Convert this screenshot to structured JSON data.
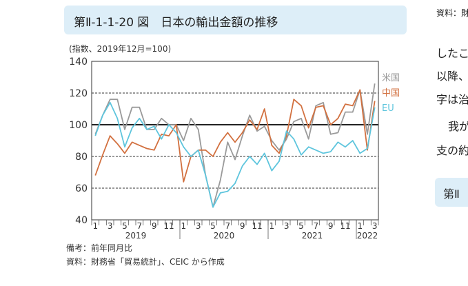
{
  "figure": {
    "title": "第Ⅱ-1-1-20 図　日本の輸出金額の推移",
    "unit": "(指数、2019年12月=100)",
    "note_1": "備考：前年同月比",
    "note_2": "資料：財務省「貿易統計」、CEIC から作成"
  },
  "side_page": {
    "top_text": "資料：財",
    "line_1": "したこ",
    "line_2": "以降、",
    "line_3": "字は治",
    "line_4": "我が",
    "line_5": "支の約",
    "box_label": "第Ⅱ"
  },
  "chart_data": {
    "type": "line",
    "x": [
      "2019-01",
      "2019-02",
      "2019-03",
      "2019-04",
      "2019-05",
      "2019-06",
      "2019-07",
      "2019-08",
      "2019-09",
      "2019-10",
      "2019-11",
      "2019-12",
      "2020-01",
      "2020-02",
      "2020-03",
      "2020-04",
      "2020-05",
      "2020-06",
      "2020-07",
      "2020-08",
      "2020-09",
      "2020-10",
      "2020-11",
      "2020-12",
      "2021-01",
      "2021-02",
      "2021-03",
      "2021-04",
      "2021-05",
      "2021-06",
      "2021-07",
      "2021-08",
      "2021-09",
      "2021-10",
      "2021-11",
      "2021-12",
      "2022-01",
      "2022-02",
      "2022-03"
    ],
    "x_tick_labels": [
      "1",
      "3",
      "5",
      "7",
      "9",
      "11",
      "1",
      "3",
      "5",
      "7",
      "9",
      "11",
      "1",
      "3",
      "5",
      "7",
      "9",
      "11",
      "1",
      "3"
    ],
    "x_year_labels": [
      "2019",
      "2020",
      "2021",
      "2022"
    ],
    "ylim": [
      40,
      140
    ],
    "yticks": [
      40,
      60,
      80,
      100,
      120,
      140
    ],
    "reference_line": 100,
    "dashed_gridlines": [
      60,
      80,
      120
    ],
    "series": [
      {
        "name": "米国",
        "color": "#9a9a9a",
        "values": [
          94,
          106,
          116,
          116,
          97,
          111,
          111,
          97,
          97,
          104,
          100,
          100,
          90,
          104,
          97,
          68,
          48,
          65,
          89,
          78,
          93,
          106,
          96,
          99,
          90,
          84,
          91,
          102,
          104,
          91,
          112,
          114,
          94,
          95,
          108,
          108,
          122,
          94,
          126
        ]
      },
      {
        "name": "中国",
        "color": "#d2703f",
        "values": [
          68,
          81,
          93,
          88,
          82,
          89,
          87,
          85,
          84,
          94,
          93,
          100,
          64,
          80,
          84,
          84,
          80,
          89,
          95,
          89,
          95,
          103,
          97,
          110,
          87,
          82,
          93,
          116,
          112,
          98,
          111,
          112,
          100,
          104,
          113,
          112,
          122,
          84,
          115
        ]
      },
      {
        "name": "EU",
        "color": "#5ec5dd",
        "values": [
          93,
          106,
          114,
          104,
          86,
          98,
          104,
          97,
          99,
          91,
          100,
          95,
          86,
          80,
          84,
          68,
          48,
          57,
          58,
          63,
          74,
          80,
          75,
          82,
          71,
          77,
          96,
          91,
          81,
          86,
          84,
          82,
          83,
          89,
          86,
          90,
          82,
          85,
          111
        ]
      }
    ]
  }
}
